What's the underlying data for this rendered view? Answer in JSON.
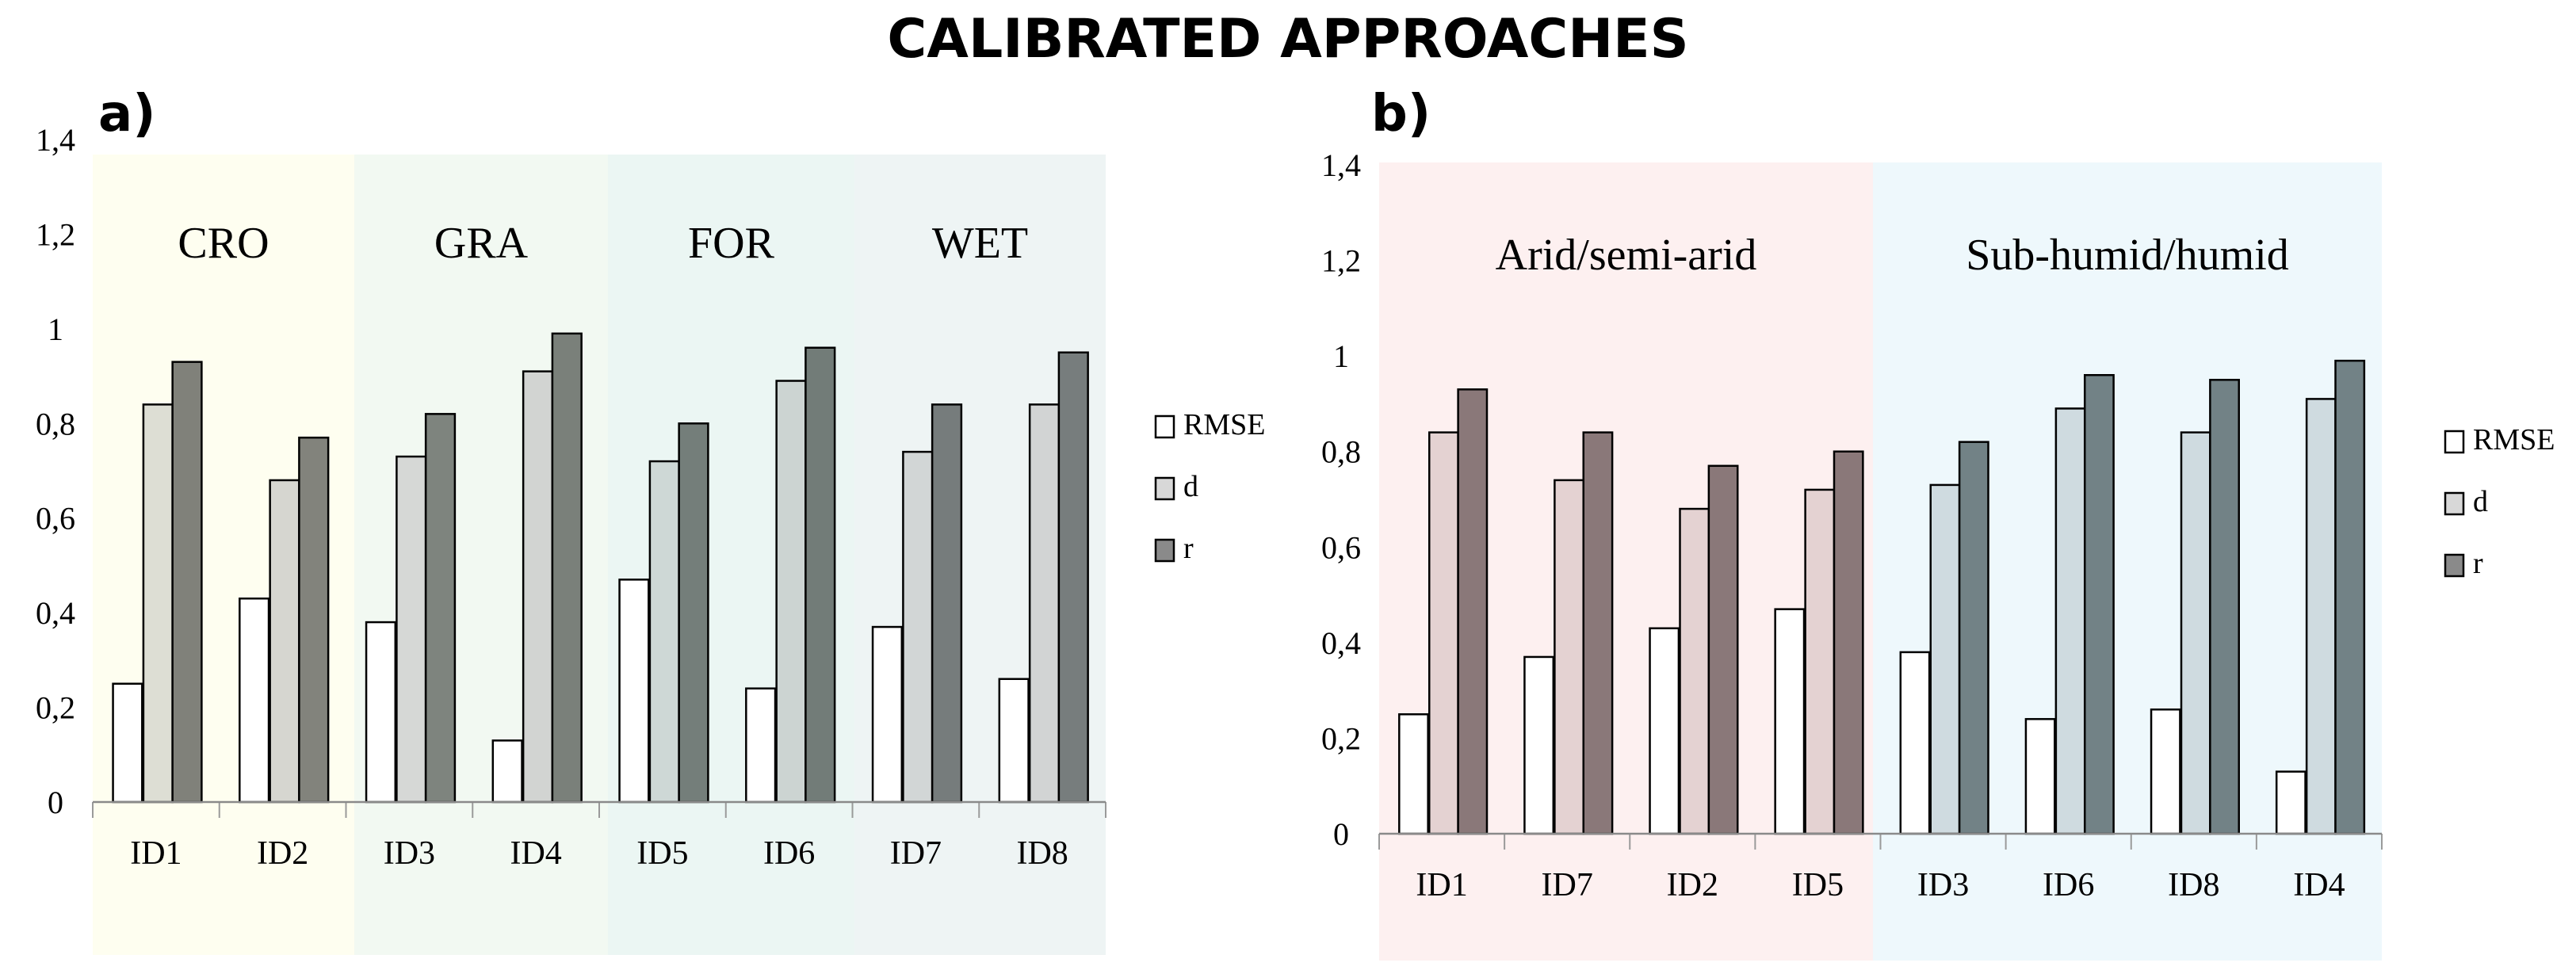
{
  "figure_title": "CALIBRATED APPROACHES",
  "chart_data": [
    {
      "type": "bar",
      "panel": "a)",
      "title": "",
      "xlabel": "",
      "ylabel": "",
      "ylim": [
        0,
        1.4
      ],
      "yticks": [
        "0",
        "0,2",
        "0,4",
        "0,6",
        "0,8",
        "1",
        "1,2",
        "1,4"
      ],
      "grid": false,
      "legend_position": "right",
      "categories": [
        "ID1",
        "ID2",
        "ID3",
        "ID4",
        "ID5",
        "ID6",
        "ID7",
        "ID8"
      ],
      "groups": [
        {
          "label": "CRO",
          "color": "#FEFEF0"
        },
        {
          "label": "GRA",
          "color": "#F2F9F2"
        },
        {
          "label": "FOR",
          "color": "#EBF6F3"
        },
        {
          "label": "WET",
          "color": "#EEF4F4"
        }
      ],
      "series": [
        {
          "name": "RMSE",
          "color": "#FFFFFF",
          "values": [
            0.25,
            0.43,
            0.38,
            0.13,
            0.47,
            0.24,
            0.37,
            0.26
          ]
        },
        {
          "name": "d",
          "colors": [
            "#DDDED4",
            "#D6D6D0",
            "#D6D8D6",
            "#D2D4D2",
            "#CED8D6",
            "#CCD4D2",
            "#D2D6D6",
            "#D2D4D4"
          ],
          "values": [
            0.84,
            0.68,
            0.73,
            0.91,
            0.72,
            0.89,
            0.74,
            0.84
          ]
        },
        {
          "name": "r",
          "colors": [
            "#80817A",
            "#82837C",
            "#7E847E",
            "#7A807A",
            "#747E7A",
            "#727C78",
            "#767C7C",
            "#777D7D"
          ],
          "values": [
            0.93,
            0.77,
            0.82,
            0.99,
            0.8,
            0.96,
            0.84,
            0.95
          ]
        }
      ]
    },
    {
      "type": "bar",
      "panel": "b)",
      "title": "",
      "xlabel": "",
      "ylabel": "",
      "ylim": [
        0,
        1.4
      ],
      "yticks": [
        "0",
        "0,2",
        "0,4",
        "0,6",
        "0,8",
        "1",
        "1,2",
        "1,4"
      ],
      "grid": false,
      "legend_position": "right",
      "categories": [
        "ID1",
        "ID7",
        "ID2",
        "ID5",
        "ID3",
        "ID6",
        "ID8",
        "ID4"
      ],
      "groups": [
        {
          "label": "Arid/semi-arid",
          "color": "#FDF0F0"
        },
        {
          "label": "Sub-humid/humid",
          "color": "#EEF8FC"
        }
      ],
      "series": [
        {
          "name": "RMSE",
          "color": "#FFFFFF",
          "values": [
            0.25,
            0.37,
            0.43,
            0.47,
            0.38,
            0.24,
            0.26,
            0.13
          ]
        },
        {
          "name": "d",
          "colors": [
            "#E4D2D2",
            "#E4D2D2",
            "#E4D2D2",
            "#E4D2D2",
            "#CFDBE0",
            "#CFDBE0",
            "#CFDBE0",
            "#CFDBE0"
          ],
          "values": [
            0.84,
            0.74,
            0.68,
            0.72,
            0.73,
            0.89,
            0.84,
            0.91
          ]
        },
        {
          "name": "r",
          "colors": [
            "#8A7879",
            "#8A7879",
            "#8A7879",
            "#8A7879",
            "#728286",
            "#728286",
            "#728286",
            "#728286"
          ],
          "values": [
            0.93,
            0.84,
            0.77,
            0.8,
            0.82,
            0.96,
            0.95,
            0.99
          ]
        }
      ]
    }
  ],
  "legend_colors": {
    "RMSE": "#FFFFFF",
    "d": "#D8D8D8",
    "r": "#8A8A8A"
  }
}
